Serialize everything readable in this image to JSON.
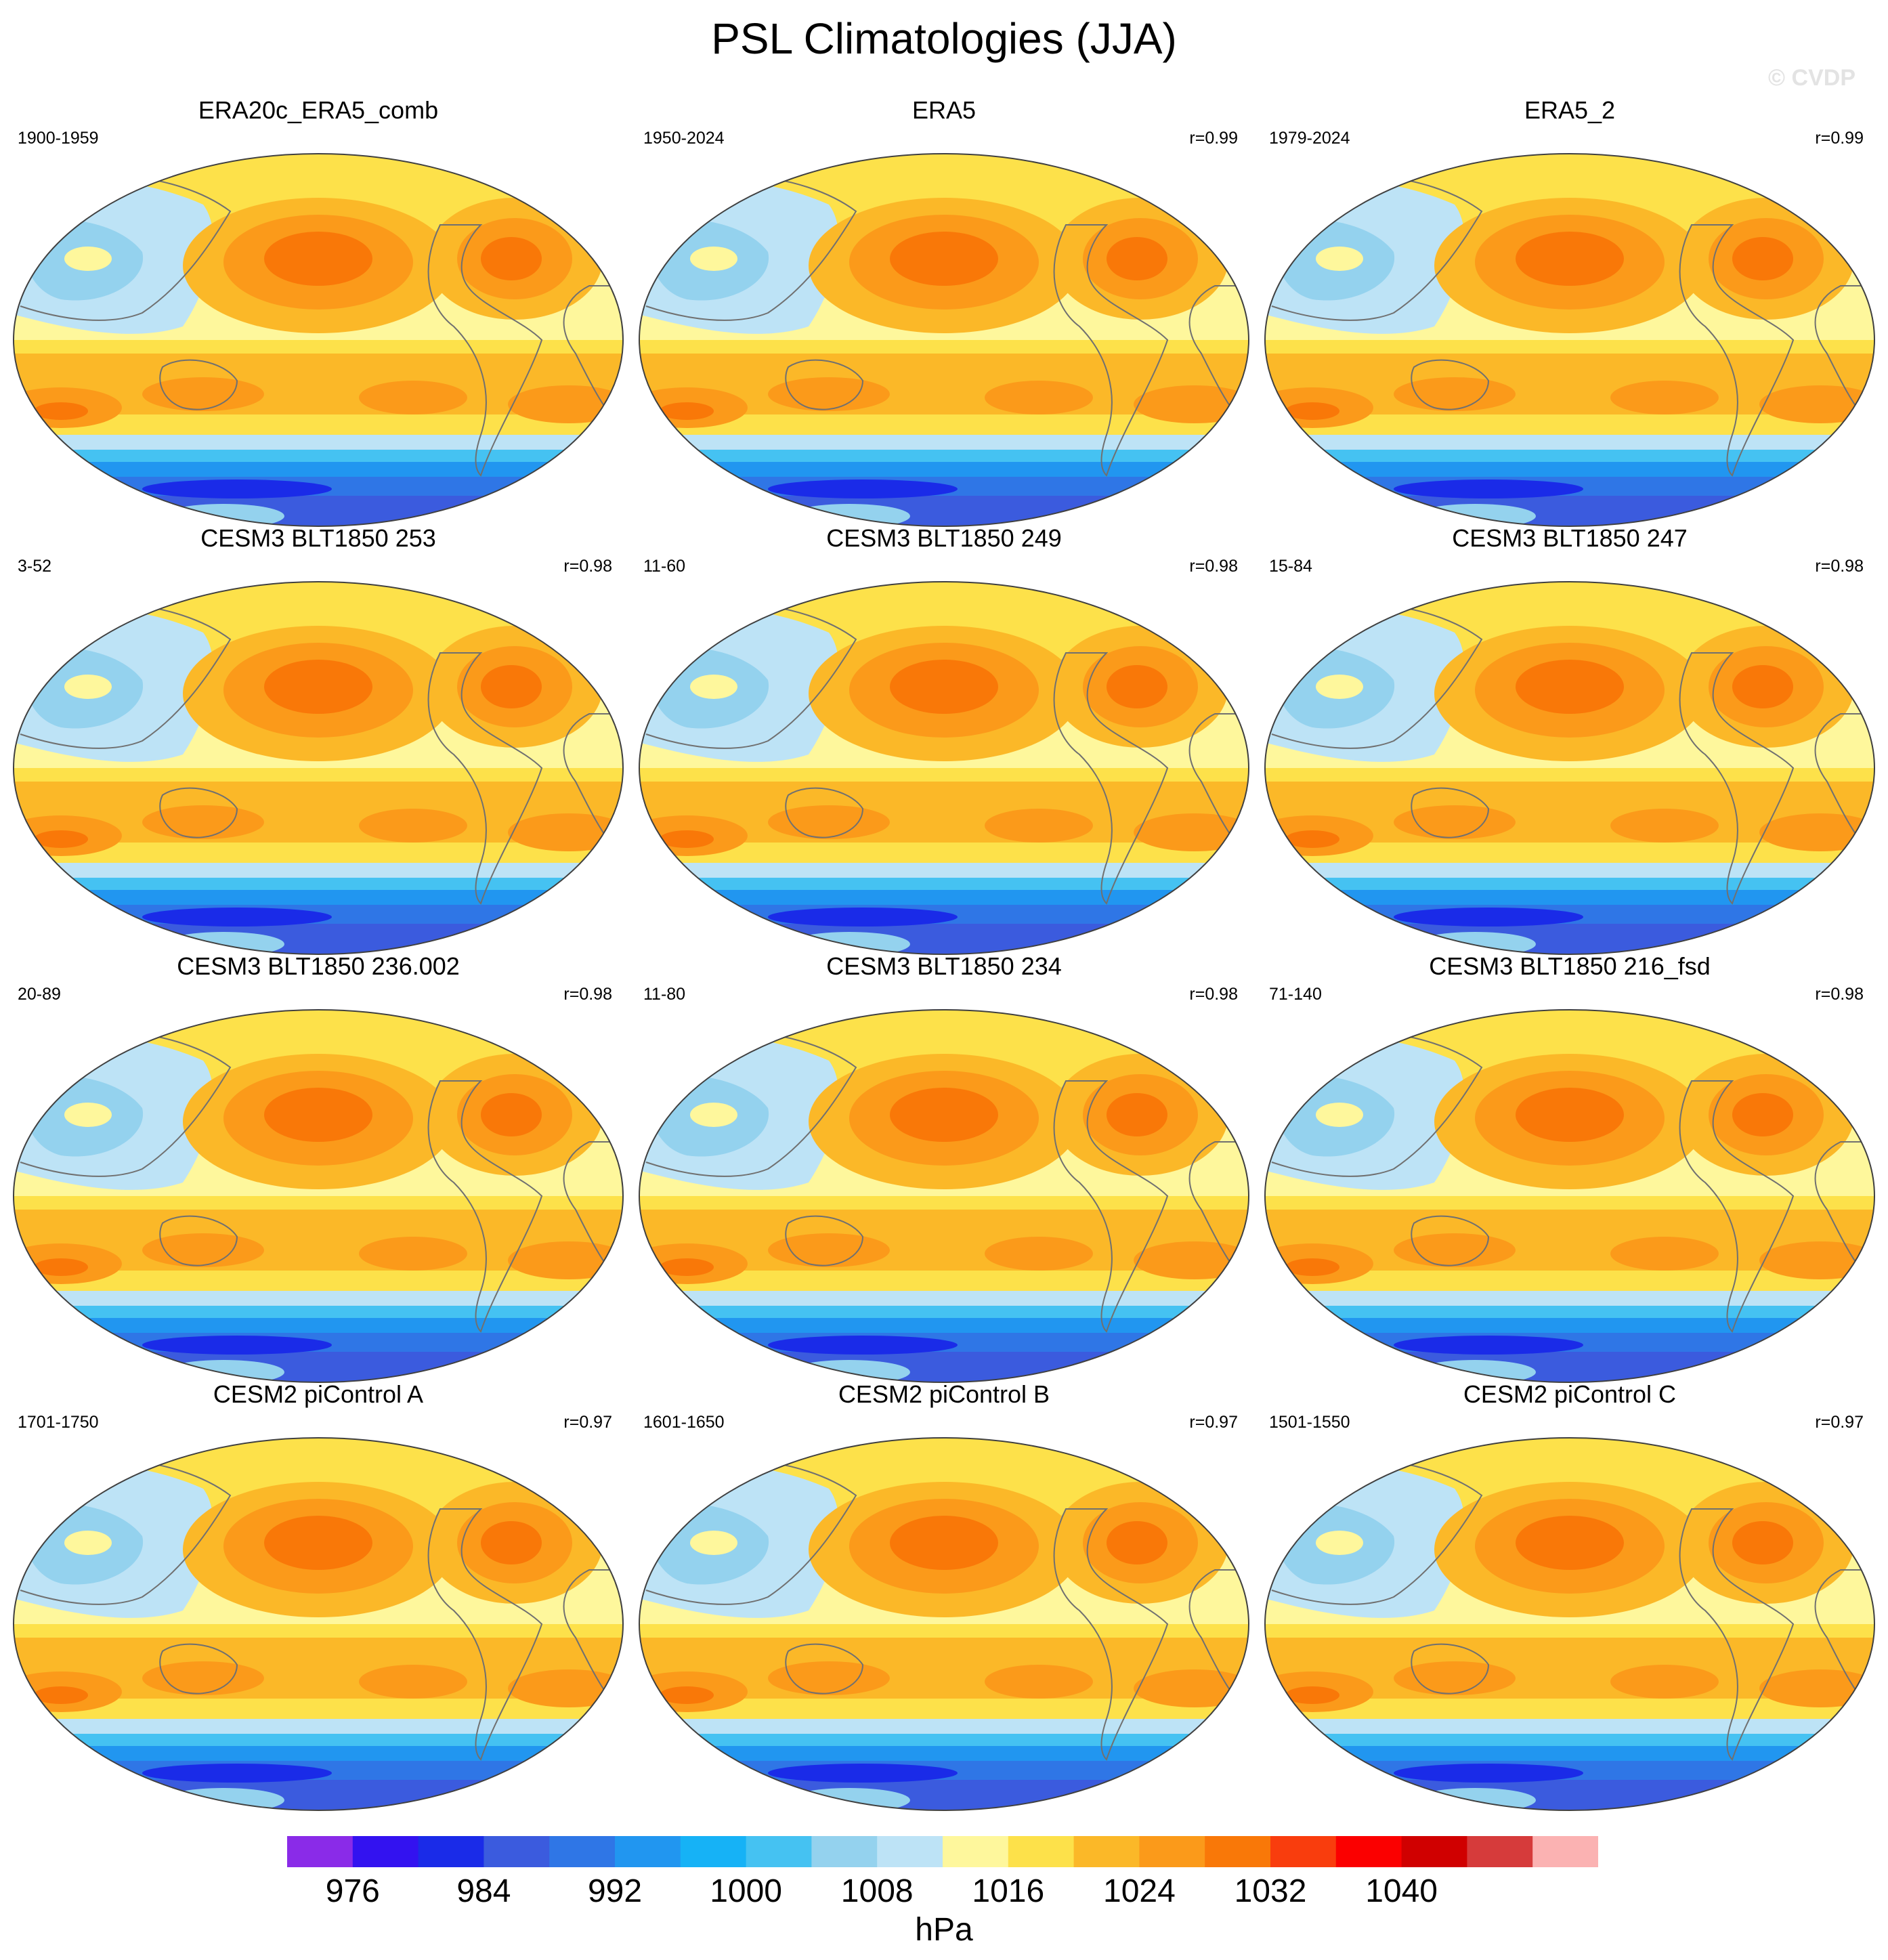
{
  "title": "PSL Climatologies (JJA)",
  "watermark": "© CVDP",
  "panels": [
    {
      "title": "ERA20c_ERA5_comb",
      "period": "1900-1959",
      "corr": ""
    },
    {
      "title": "ERA5",
      "period": "1950-2024",
      "corr": "r=0.99"
    },
    {
      "title": "ERA5_2",
      "period": "1979-2024",
      "corr": "r=0.99"
    },
    {
      "title": "CESM3 BLT1850 253",
      "period": "3-52",
      "corr": "r=0.98"
    },
    {
      "title": "CESM3 BLT1850 249",
      "period": "11-60",
      "corr": "r=0.98"
    },
    {
      "title": "CESM3 BLT1850 247",
      "period": "15-84",
      "corr": "r=0.98"
    },
    {
      "title": "CESM3 BLT1850 236.002",
      "period": "20-89",
      "corr": "r=0.98"
    },
    {
      "title": "CESM3 BLT1850 234",
      "period": "11-80",
      "corr": "r=0.98"
    },
    {
      "title": "CESM3 BLT1850 216_fsd",
      "period": "71-140",
      "corr": "r=0.98"
    },
    {
      "title": "CESM2 piControl A",
      "period": "1701-1750",
      "corr": "r=0.97"
    },
    {
      "title": "CESM2 piControl B",
      "period": "1601-1650",
      "corr": "r=0.97"
    },
    {
      "title": "CESM2 piControl C",
      "period": "1501-1550",
      "corr": "r=0.97"
    }
  ],
  "colorbar": {
    "units": "hPa",
    "colors": [
      "#8a2be8",
      "#3312f0",
      "#1a2be8",
      "#3b5bde",
      "#2f76e6",
      "#2196f0",
      "#16b2f6",
      "#45c2f2",
      "#94d2ee",
      "#bde3f6",
      "#fef79c",
      "#fde14a",
      "#fbb828",
      "#fb9a1a",
      "#f97808",
      "#f93d0d",
      "#fb0000",
      "#d00000",
      "#d63b3b",
      "#fbb2b2"
    ],
    "tick_labels": [
      "976",
      "984",
      "992",
      "1000",
      "1008",
      "1016",
      "1024",
      "1032",
      "1040"
    ],
    "tick_positions": [
      1,
      3,
      5,
      7,
      9,
      11,
      13,
      15,
      17
    ]
  }
}
